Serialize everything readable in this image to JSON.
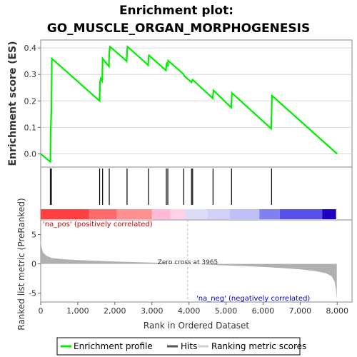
{
  "title_line1": "Enrichment plot:",
  "title_line2": "GO_MUSCLE_ORGAN_MORPHOGENESIS",
  "colors": {
    "enrichment": "#00ee00",
    "hits": "#000000",
    "metric": "#b0b0b0",
    "pos_label": "#cc0000",
    "neg_label": "#0000cc"
  },
  "chart_data": [
    {
      "type": "line",
      "ylabel": "Enrichment score (ES)",
      "yticks": [
        "0.0",
        "0.1",
        "0.2",
        "0.3",
        "0.4"
      ],
      "ylim": [
        -0.05,
        0.43
      ],
      "xlim": [
        0,
        8400
      ],
      "series": [
        {
          "name": "Enrichment profile",
          "x": [
            0,
            260,
            270,
            290,
            300,
            1590,
            1600,
            1620,
            1660,
            1670,
            1840,
            1850,
            1870,
            2320,
            2330,
            2340,
            2900,
            2910,
            2920,
            3380,
            3390,
            3400,
            3430,
            3440,
            3860,
            3870,
            4070,
            4080,
            4100,
            4640,
            4650,
            4660,
            5140,
            5150,
            5160,
            6220,
            6230,
            6240,
            8000
          ],
          "y": [
            0.0,
            -0.03,
            0.09,
            0.17,
            0.36,
            0.2,
            0.27,
            0.285,
            0.275,
            0.36,
            0.33,
            0.38,
            0.405,
            0.35,
            0.38,
            0.405,
            0.335,
            0.36,
            0.372,
            0.315,
            0.335,
            0.34,
            0.33,
            0.352,
            0.3,
            0.295,
            0.27,
            0.275,
            0.28,
            0.21,
            0.225,
            0.24,
            0.175,
            0.2,
            0.23,
            0.095,
            0.15,
            0.22,
            0.0
          ]
        }
      ]
    },
    {
      "type": "hits",
      "series": [
        {
          "name": "Hits",
          "x": [
            260,
            290,
            1590,
            1670,
            1850,
            2330,
            2910,
            3390,
            3430,
            3860,
            4070,
            4100,
            4650,
            5150,
            6230
          ]
        }
      ]
    },
    {
      "type": "heatmap",
      "xlim": [
        0,
        8400
      ],
      "segments": [
        {
          "from": 0,
          "to": 1300,
          "color": "#ff4040"
        },
        {
          "from": 1300,
          "to": 2050,
          "color": "#ff6a6a"
        },
        {
          "from": 2050,
          "to": 3000,
          "color": "#ff9090"
        },
        {
          "from": 3000,
          "to": 3500,
          "color": "#ffb8d8"
        },
        {
          "from": 3500,
          "to": 3900,
          "color": "#ffd0e8"
        },
        {
          "from": 3900,
          "to": 4500,
          "color": "#dcdcf8"
        },
        {
          "from": 4500,
          "to": 5100,
          "color": "#d0d0f8"
        },
        {
          "from": 5100,
          "to": 5900,
          "color": "#c0c0f8"
        },
        {
          "from": 5900,
          "to": 6450,
          "color": "#8080f0"
        },
        {
          "from": 6450,
          "to": 7600,
          "color": "#5a50e8"
        },
        {
          "from": 7600,
          "to": 7970,
          "color": "#2000c0"
        }
      ]
    },
    {
      "type": "area",
      "ylabel": "Ranked list metric (PreRanked)",
      "xlabel": "Rank in Ordered Dataset",
      "xticks": [
        0,
        1000,
        2000,
        3000,
        4000,
        5000,
        6000,
        7000,
        8000
      ],
      "xtick_labels": [
        "0",
        "1,000",
        "2,000",
        "3,000",
        "4,000",
        "5,000",
        "6,000",
        "7,000",
        "8,000"
      ],
      "yticks": [
        5,
        0,
        -5
      ],
      "ylim": [
        -6.5,
        7.5
      ],
      "zero_cross": 3965,
      "series": [
        {
          "name": "Ranking metric scores",
          "x": [
            0,
            20,
            60,
            150,
            300,
            600,
            1000,
            1500,
            2000,
            2500,
            3000,
            3500,
            3965,
            4500,
            5000,
            5500,
            6000,
            6500,
            7000,
            7400,
            7700,
            7850,
            7930,
            7970,
            7990
          ],
          "y": [
            4.2,
            3.0,
            2.0,
            1.4,
            1.0,
            0.8,
            0.65,
            0.52,
            0.42,
            0.32,
            0.22,
            0.1,
            0.0,
            -0.12,
            -0.25,
            -0.38,
            -0.52,
            -0.7,
            -0.92,
            -1.2,
            -1.6,
            -2.1,
            -3.0,
            -4.5,
            -6.2
          ]
        }
      ]
    }
  ],
  "labels": {
    "pos": "'na_pos' (positively correlated)",
    "neg": "'na_neg' (negatively correlated)",
    "zero_cross": "Zero cross at 3965"
  },
  "legend": [
    {
      "label": "Enrichment profile",
      "color": "#00ee00"
    },
    {
      "label": "Hits",
      "color": "#555555"
    },
    {
      "label": "Ranking metric scores",
      "color": "#d0d0d0"
    }
  ]
}
